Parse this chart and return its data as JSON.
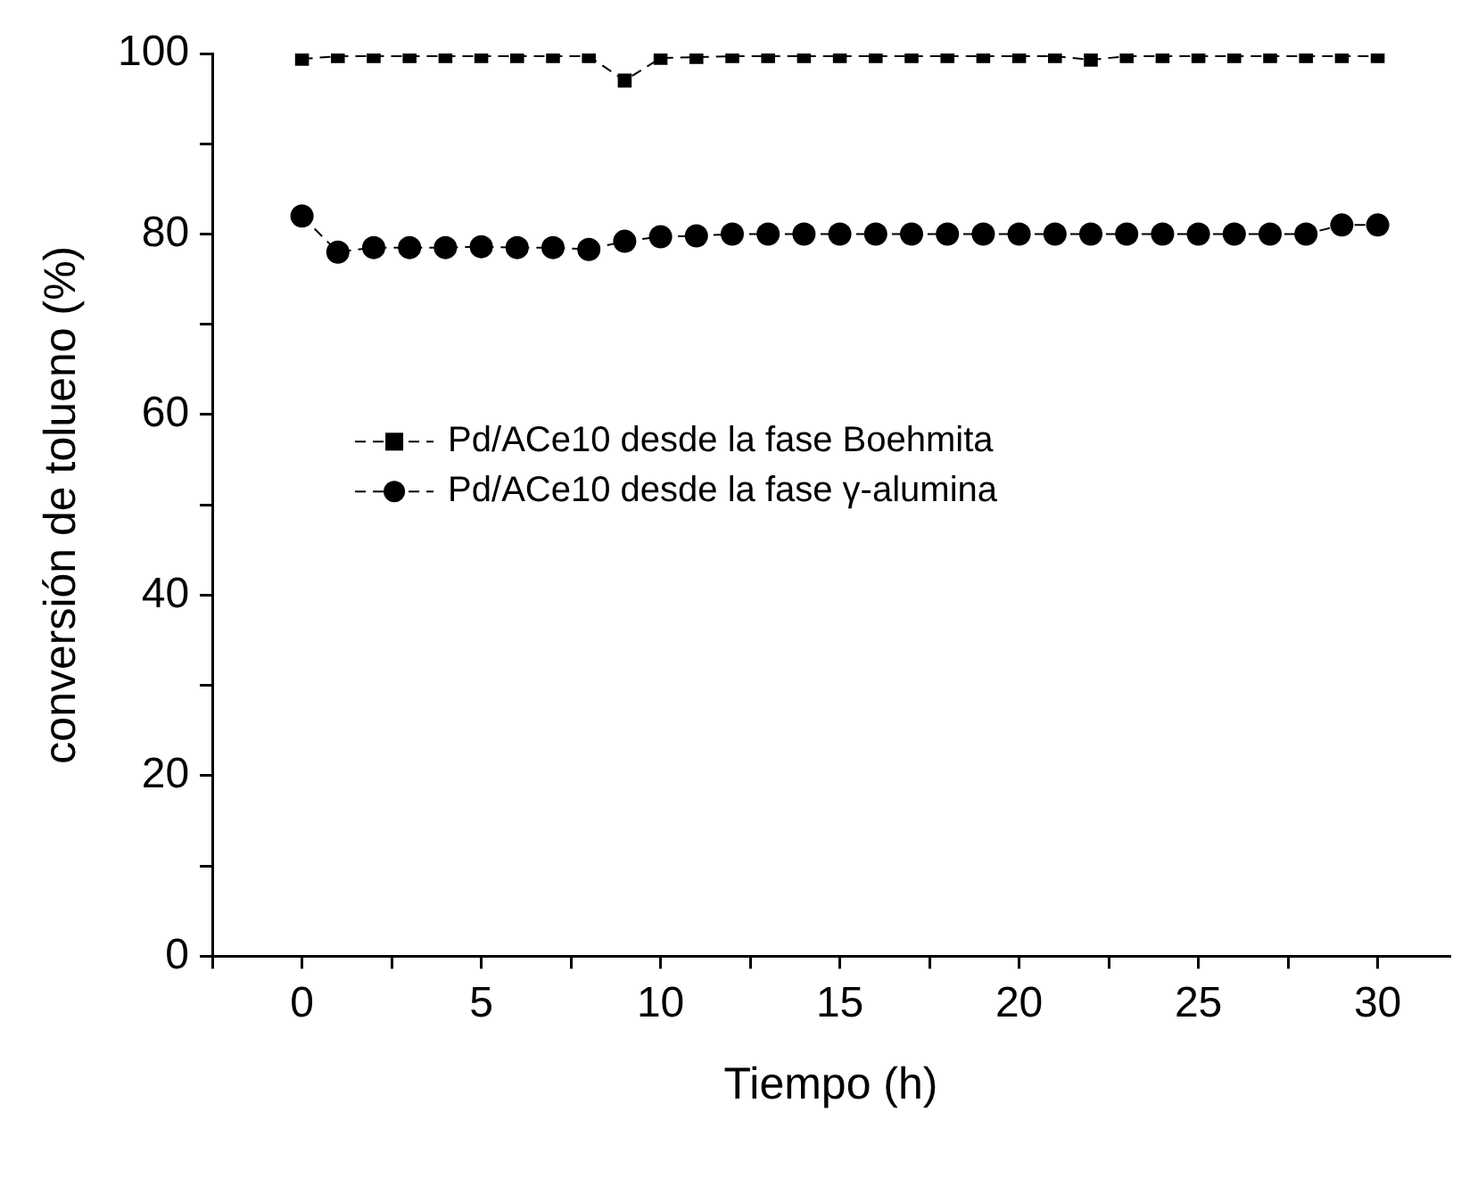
{
  "chart_data": {
    "type": "line",
    "xlabel": "Tiempo (h)",
    "ylabel": "conversión de tolueno (%)",
    "x": [
      0,
      1,
      2,
      3,
      4,
      5,
      6,
      7,
      8,
      9,
      10,
      11,
      12,
      13,
      14,
      15,
      16,
      17,
      18,
      19,
      20,
      21,
      22,
      23,
      24,
      25,
      26,
      27,
      28,
      29,
      30
    ],
    "series": [
      {
        "name": "Pd/ACe10 desde la fase Boehmita",
        "color": "#000000",
        "marker": "square",
        "values": [
          99.4,
          99.7,
          99.7,
          99.7,
          99.7,
          99.7,
          99.7,
          99.7,
          99.7,
          97,
          99.5,
          99.6,
          99.7,
          99.7,
          99.7,
          99.7,
          99.7,
          99.7,
          99.7,
          99.7,
          99.7,
          99.7,
          99.3,
          99.7,
          99.7,
          99.7,
          99.7,
          99.7,
          99.7,
          99.7,
          99.7
        ]
      },
      {
        "name": "Pd/ACe10 desde la fase γ-alumina",
        "color": "#000000",
        "marker": "circle",
        "values": [
          82,
          78,
          78.5,
          78.5,
          78.5,
          78.6,
          78.5,
          78.5,
          78.3,
          79.2,
          79.7,
          79.8,
          80,
          80,
          80,
          80,
          80,
          80,
          80,
          80,
          80,
          80,
          80,
          80,
          80,
          80,
          80,
          80,
          80,
          81,
          81
        ]
      }
    ],
    "xlim": [
      -2.5,
      32
    ],
    "xticks": [
      {
        "value": -2.5,
        "label": null
      },
      0,
      {
        "value": 2.5,
        "label": null
      },
      5,
      {
        "value": 7.5,
        "label": null
      },
      10,
      {
        "value": 12.5,
        "label": null
      },
      15,
      {
        "value": 17.5,
        "label": null
      },
      20,
      {
        "value": 22.5,
        "label": null
      },
      25,
      {
        "value": 27.5,
        "label": null
      },
      30
    ],
    "ylim": [
      0,
      100
    ],
    "yticks": [
      0,
      {
        "value": 10,
        "label": null
      },
      20,
      {
        "value": 30,
        "label": null
      },
      40,
      {
        "value": 50,
        "label": null
      },
      60,
      {
        "value": 70,
        "label": null
      },
      80,
      {
        "value": 90,
        "label": null
      },
      100
    ],
    "grid": false,
    "legend": "left",
    "line_style": "dashed"
  }
}
